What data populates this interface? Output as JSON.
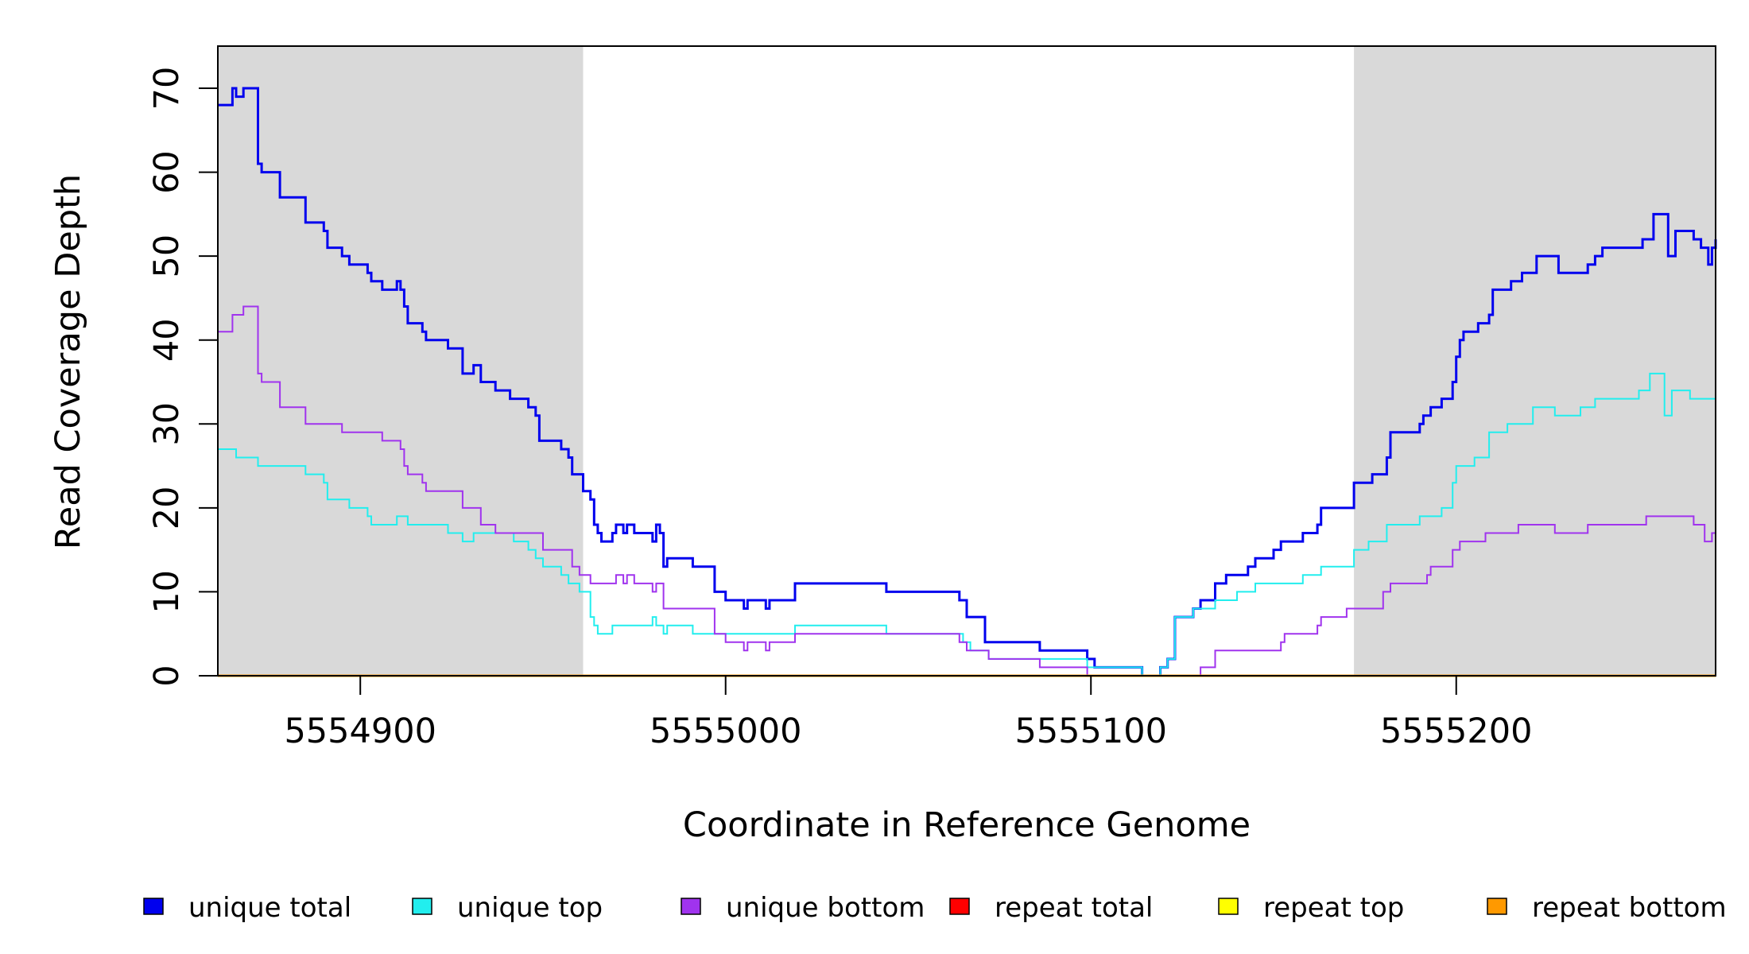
{
  "chart_data": {
    "type": "line",
    "step": true,
    "xlabel": "Coordinate in Reference Genome",
    "ylabel": "Read Coverage Depth",
    "xlim": [
      5554861,
      5555271
    ],
    "ylim": [
      0,
      75
    ],
    "x_ticks": [
      5554900,
      5555000,
      5555100,
      5555200
    ],
    "x_tick_labels": [
      "5554900",
      "5555000",
      "5555100",
      "5555200"
    ],
    "y_ticks": [
      0,
      10,
      20,
      30,
      40,
      50,
      60,
      70
    ],
    "y_tick_labels": [
      "0",
      "10",
      "20",
      "30",
      "40",
      "50",
      "60",
      "70"
    ],
    "shaded_regions": [
      {
        "from": 5554861,
        "to": 5554961,
        "color": "#d9d9d9"
      },
      {
        "from": 5555172,
        "to": 5555271,
        "color": "#d9d9d9"
      }
    ],
    "series": [
      {
        "name": "unique total",
        "color": "#0000ee",
        "line_width": 3,
        "points": [
          [
            5554861,
            68
          ],
          [
            5554865,
            70
          ],
          [
            5554866,
            69
          ],
          [
            5554868,
            70
          ],
          [
            5554872,
            61
          ],
          [
            5554873,
            60
          ],
          [
            5554878,
            57
          ],
          [
            5554885,
            54
          ],
          [
            5554890,
            53
          ],
          [
            5554891,
            51
          ],
          [
            5554895,
            50
          ],
          [
            5554897,
            49
          ],
          [
            5554902,
            48
          ],
          [
            5554903,
            47
          ],
          [
            5554906,
            46
          ],
          [
            5554910,
            47
          ],
          [
            5554911,
            46
          ],
          [
            5554912,
            44
          ],
          [
            5554913,
            42
          ],
          [
            5554917,
            41
          ],
          [
            5554918,
            40
          ],
          [
            5554924,
            39
          ],
          [
            5554928,
            36
          ],
          [
            5554931,
            37
          ],
          [
            5554933,
            35
          ],
          [
            5554937,
            34
          ],
          [
            5554941,
            33
          ],
          [
            5554946,
            32
          ],
          [
            5554948,
            31
          ],
          [
            5554949,
            28
          ],
          [
            5554955,
            27
          ],
          [
            5554957,
            26
          ],
          [
            5554958,
            24
          ],
          [
            5554961,
            22
          ],
          [
            5554963,
            21
          ],
          [
            5554964,
            18
          ],
          [
            5554965,
            17
          ],
          [
            5554966,
            16
          ],
          [
            5554969,
            17
          ],
          [
            5554970,
            18
          ],
          [
            5554972,
            17
          ],
          [
            5554973,
            18
          ],
          [
            5554975,
            17
          ],
          [
            5554980,
            16
          ],
          [
            5554981,
            18
          ],
          [
            5554982,
            17
          ],
          [
            5554983,
            13
          ],
          [
            5554984,
            14
          ],
          [
            5554991,
            13
          ],
          [
            5554997,
            10
          ],
          [
            5555000,
            9
          ],
          [
            5555005,
            8
          ],
          [
            5555006,
            9
          ],
          [
            5555011,
            8
          ],
          [
            5555012,
            9
          ],
          [
            5555019,
            11
          ],
          [
            5555044,
            10
          ],
          [
            5555064,
            9
          ],
          [
            5555066,
            7
          ],
          [
            5555071,
            4
          ],
          [
            5555086,
            3
          ],
          [
            5555099,
            2
          ],
          [
            5555101,
            1
          ],
          [
            5555114,
            0
          ],
          [
            5555119,
            1
          ],
          [
            5555121,
            2
          ],
          [
            5555123,
            7
          ],
          [
            5555128,
            8
          ],
          [
            5555130,
            9
          ],
          [
            5555134,
            11
          ],
          [
            5555137,
            12
          ],
          [
            5555143,
            13
          ],
          [
            5555145,
            14
          ],
          [
            5555150,
            15
          ],
          [
            5555152,
            16
          ],
          [
            5555158,
            17
          ],
          [
            5555162,
            18
          ],
          [
            5555163,
            20
          ],
          [
            5555172,
            23
          ],
          [
            5555177,
            24
          ],
          [
            5555181,
            26
          ],
          [
            5555182,
            29
          ],
          [
            5555190,
            30
          ],
          [
            5555191,
            31
          ],
          [
            5555193,
            32
          ],
          [
            5555196,
            33
          ],
          [
            5555199,
            35
          ],
          [
            5555200,
            38
          ],
          [
            5555201,
            40
          ],
          [
            5555202,
            41
          ],
          [
            5555206,
            42
          ],
          [
            5555209,
            43
          ],
          [
            5555210,
            46
          ],
          [
            5555215,
            47
          ],
          [
            5555218,
            48
          ],
          [
            5555222,
            50
          ],
          [
            5555228,
            48
          ],
          [
            5555236,
            49
          ],
          [
            5555238,
            50
          ],
          [
            5555240,
            51
          ],
          [
            5555251,
            52
          ],
          [
            5555254,
            55
          ],
          [
            5555258,
            50
          ],
          [
            5555260,
            53
          ],
          [
            5555265,
            52
          ],
          [
            5555267,
            51
          ],
          [
            5555269,
            49
          ],
          [
            5555270,
            51
          ],
          [
            5555271,
            52
          ]
        ]
      },
      {
        "name": "unique top",
        "color": "#22eeee",
        "line_width": 2,
        "points": [
          [
            5554861,
            27
          ],
          [
            5554866,
            26
          ],
          [
            5554872,
            25
          ],
          [
            5554885,
            24
          ],
          [
            5554890,
            23
          ],
          [
            5554891,
            21
          ],
          [
            5554897,
            20
          ],
          [
            5554902,
            19
          ],
          [
            5554903,
            18
          ],
          [
            5554910,
            19
          ],
          [
            5554913,
            18
          ],
          [
            5554924,
            17
          ],
          [
            5554928,
            16
          ],
          [
            5554931,
            17
          ],
          [
            5554937,
            17
          ],
          [
            5554942,
            16
          ],
          [
            5554946,
            15
          ],
          [
            5554948,
            14
          ],
          [
            5554950,
            13
          ],
          [
            5554955,
            12
          ],
          [
            5554957,
            11
          ],
          [
            5554960,
            10
          ],
          [
            5554963,
            7
          ],
          [
            5554964,
            6
          ],
          [
            5554965,
            5
          ],
          [
            5554969,
            6
          ],
          [
            5554980,
            7
          ],
          [
            5554981,
            6
          ],
          [
            5554983,
            5
          ],
          [
            5554984,
            6
          ],
          [
            5554991,
            5
          ],
          [
            5555019,
            6
          ],
          [
            5555044,
            5
          ],
          [
            5555065,
            4
          ],
          [
            5555067,
            3
          ],
          [
            5555072,
            2
          ],
          [
            5555086,
            2
          ],
          [
            5555099,
            1
          ],
          [
            5555101,
            1
          ],
          [
            5555114,
            0
          ],
          [
            5555119,
            1
          ],
          [
            5555121,
            2
          ],
          [
            5555123,
            7
          ],
          [
            5555128,
            8
          ],
          [
            5555134,
            9
          ],
          [
            5555140,
            10
          ],
          [
            5555145,
            11
          ],
          [
            5555158,
            12
          ],
          [
            5555163,
            13
          ],
          [
            5555172,
            15
          ],
          [
            5555176,
            16
          ],
          [
            5555181,
            18
          ],
          [
            5555190,
            19
          ],
          [
            5555196,
            20
          ],
          [
            5555199,
            23
          ],
          [
            5555200,
            25
          ],
          [
            5555205,
            26
          ],
          [
            5555209,
            29
          ],
          [
            5555214,
            30
          ],
          [
            5555221,
            32
          ],
          [
            5555227,
            31
          ],
          [
            5555234,
            32
          ],
          [
            5555238,
            33
          ],
          [
            5555250,
            34
          ],
          [
            5555253,
            36
          ],
          [
            5555257,
            31
          ],
          [
            5555259,
            34
          ],
          [
            5555264,
            33
          ],
          [
            5555271,
            33
          ]
        ]
      },
      {
        "name": "unique bottom",
        "color": "#a033ee",
        "line_width": 2,
        "points": [
          [
            5554861,
            41
          ],
          [
            5554865,
            43
          ],
          [
            5554868,
            44
          ],
          [
            5554872,
            36
          ],
          [
            5554873,
            35
          ],
          [
            5554878,
            32
          ],
          [
            5554885,
            30
          ],
          [
            5554895,
            29
          ],
          [
            5554906,
            28
          ],
          [
            5554911,
            27
          ],
          [
            5554912,
            25
          ],
          [
            5554913,
            24
          ],
          [
            5554917,
            23
          ],
          [
            5554918,
            22
          ],
          [
            5554928,
            20
          ],
          [
            5554933,
            18
          ],
          [
            5554937,
            17
          ],
          [
            5554950,
            15
          ],
          [
            5554958,
            13
          ],
          [
            5554960,
            12
          ],
          [
            5554963,
            11
          ],
          [
            5554970,
            12
          ],
          [
            5554972,
            11
          ],
          [
            5554973,
            12
          ],
          [
            5554975,
            11
          ],
          [
            5554980,
            10
          ],
          [
            5554981,
            11
          ],
          [
            5554983,
            8
          ],
          [
            5554997,
            5
          ],
          [
            5555000,
            4
          ],
          [
            5555005,
            3
          ],
          [
            5555006,
            4
          ],
          [
            5555011,
            3
          ],
          [
            5555012,
            4
          ],
          [
            5555019,
            5
          ],
          [
            5555064,
            4
          ],
          [
            5555066,
            3
          ],
          [
            5555072,
            2
          ],
          [
            5555086,
            1
          ],
          [
            5555099,
            0
          ],
          [
            5555130,
            1
          ],
          [
            5555134,
            3
          ],
          [
            5555152,
            4
          ],
          [
            5555153,
            5
          ],
          [
            5555162,
            6
          ],
          [
            5555163,
            7
          ],
          [
            5555170,
            8
          ],
          [
            5555180,
            10
          ],
          [
            5555182,
            11
          ],
          [
            5555192,
            12
          ],
          [
            5555193,
            13
          ],
          [
            5555199,
            15
          ],
          [
            5555201,
            16
          ],
          [
            5555208,
            17
          ],
          [
            5555217,
            18
          ],
          [
            5555227,
            17
          ],
          [
            5555236,
            18
          ],
          [
            5555252,
            19
          ],
          [
            5555265,
            18
          ],
          [
            5555268,
            16
          ],
          [
            5555270,
            17
          ],
          [
            5555271,
            19
          ]
        ]
      },
      {
        "name": "repeat total",
        "color": "#ff0000",
        "line_width": 2,
        "points": [
          [
            5554861,
            0
          ],
          [
            5555271,
            0
          ]
        ]
      },
      {
        "name": "repeat top",
        "color": "#ffff00",
        "line_width": 2,
        "points": [
          [
            5554861,
            0
          ],
          [
            5555271,
            0
          ]
        ]
      },
      {
        "name": "repeat bottom",
        "color": "#ff9900",
        "line_width": 3,
        "points": [
          [
            5554861,
            0
          ],
          [
            5555271,
            0
          ]
        ]
      }
    ],
    "legend": {
      "placement": "bottom",
      "entries": [
        "unique total",
        "unique top",
        "unique bottom",
        "repeat total",
        "repeat top",
        "repeat bottom"
      ]
    }
  }
}
